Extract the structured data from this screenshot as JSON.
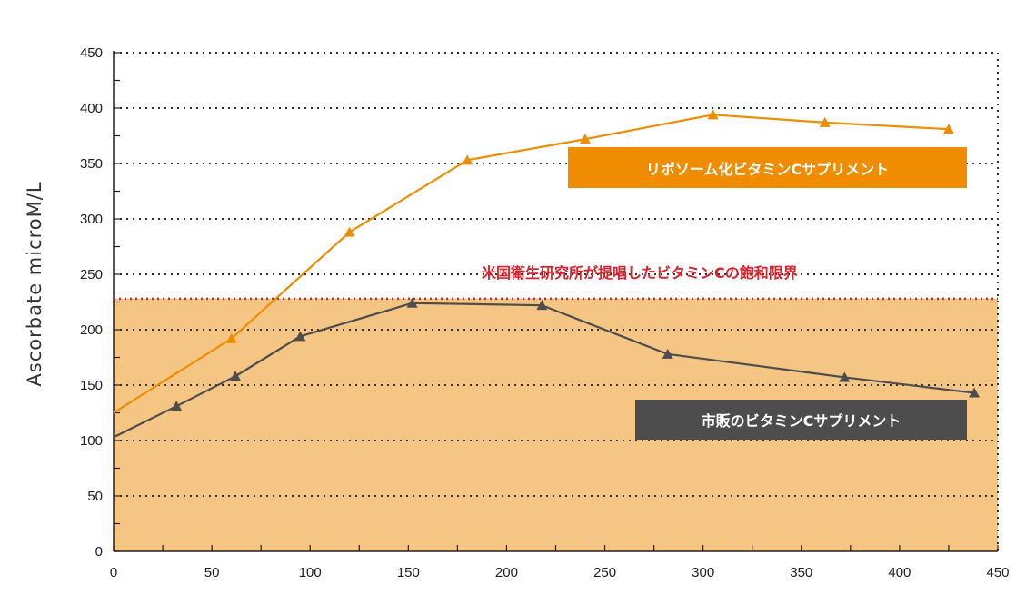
{
  "chart_data": {
    "type": "line",
    "ylabel": "Ascorbate microM/L",
    "xlim": [
      0,
      450
    ],
    "ylim": [
      0,
      450
    ],
    "x_ticks": [
      "0",
      "50",
      "100",
      "150",
      "200",
      "250",
      "300",
      "350",
      "400",
      "450"
    ],
    "y_ticks": [
      "0",
      "50",
      "100",
      "150",
      "200",
      "250",
      "300",
      "350",
      "400",
      "450"
    ],
    "grid": "horizontal dotted",
    "series": [
      {
        "name": "リポソーム化ビタミンCサプリメント",
        "color": "#f08c00",
        "marker": "triangle",
        "x": [
          0,
          60,
          120,
          180,
          240,
          305,
          362,
          425
        ],
        "y": [
          125,
          192,
          288,
          353,
          372,
          394,
          387,
          381
        ]
      },
      {
        "name": "市販のビタミンCサプリメント",
        "color": "#4d4d4d",
        "marker": "triangle",
        "x": [
          0,
          32,
          62,
          95,
          152,
          218,
          282,
          372,
          438
        ],
        "y": [
          103,
          131,
          158,
          194,
          224,
          222,
          178,
          157,
          143
        ]
      }
    ],
    "threshold": {
      "label": "米国衛生研究所が提唱したビタミンCの飽和限界",
      "value": 228,
      "line_color": "#e0202a",
      "fill_color": "#f5c583"
    }
  }
}
